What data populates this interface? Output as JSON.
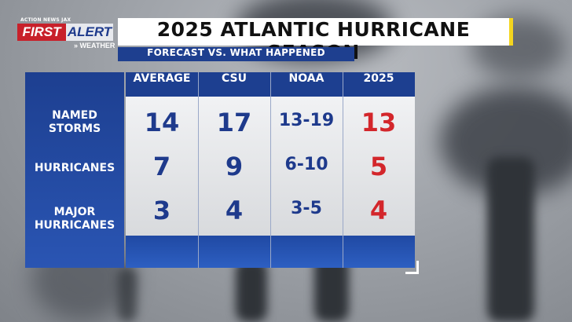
{
  "logo": {
    "top_text": "ACTION NEWS JAX",
    "first": "FIRST",
    "alert": "ALERT",
    "weather": "WEATHER"
  },
  "header": {
    "title": "2025 ATLANTIC HURRICANE SEASON",
    "subtitle": "FORECAST VS. WHAT HAPPENED"
  },
  "table": {
    "columns": [
      "AVERAGE",
      "CSU",
      "NOAA",
      "2025"
    ],
    "rows": [
      {
        "label_line1": "NAMED",
        "label_line2": "STORMS",
        "values": [
          "14",
          "17",
          "13-19",
          "13"
        ]
      },
      {
        "label_line1": "HURRICANES",
        "label_line2": "",
        "values": [
          "7",
          "9",
          "6-10",
          "5"
        ]
      },
      {
        "label_line1": "MAJOR",
        "label_line2": "HURRICANES",
        "values": [
          "3",
          "4",
          "3-5",
          "4"
        ]
      }
    ]
  },
  "colors": {
    "brand_blue": "#1e3f8f",
    "alert_red": "#d3262b",
    "accent_yellow": "#f4d51f"
  }
}
